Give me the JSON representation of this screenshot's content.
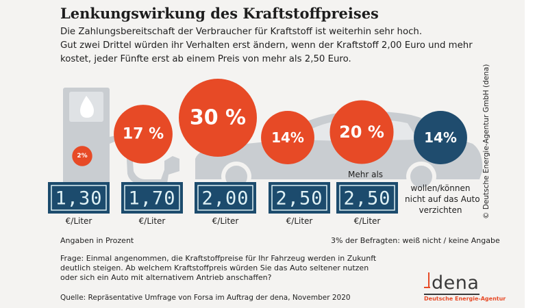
{
  "title": "Lenkungswirkung des Kraftstoffpreises",
  "subtitle": [
    "Die Zahlungsbereitschaft der Verbraucher für Kraftstoff ist weiterhin sehr hoch.",
    "Gut zwei Drittel würden ihr Verhalten erst ändern, wenn der Kraftstoff 2,00 Euro und mehr",
    "kostet, jeder Fünfte erst ab einem Preis von mehr als 2,50 Euro."
  ],
  "colors": {
    "orange": "#e74a26",
    "navy": "#1f4c6e",
    "display_bg": "#1c4b6d",
    "display_text": "#dff1f5",
    "illustration": "#c9cdd1"
  },
  "chart_data": {
    "type": "bubble",
    "unit": "%",
    "categories": [
      "1,30",
      "1,70",
      "2,00",
      "2,50",
      "Mehr als 2,50",
      "wollen/können nicht auf das Auto verzichten"
    ],
    "values": [
      2,
      17,
      30,
      14,
      20,
      14
    ],
    "value_labels": [
      "2%",
      "17 %",
      "30 %",
      "14%",
      "20 %",
      "14%"
    ],
    "series_colors": [
      "#e74a26",
      "#e74a26",
      "#e74a26",
      "#e74a26",
      "#e74a26",
      "#1f4c6e"
    ],
    "price_displays": [
      "1,30",
      "1,70",
      "2,00",
      "2,50",
      "2,50"
    ],
    "price_unit": "€/Liter",
    "prefix_last_price": "Mehr als",
    "no_car_label": [
      "wollen/können",
      "nicht auf das Auto",
      "verzichten"
    ]
  },
  "note_left": "Angaben in Prozent",
  "note_right": "3% der Befragten: weiß nicht / keine Angabe",
  "question": [
    "Frage: Einmal angenommen, die Kraftstoffpreise für Ihr Fahrzeug werden in Zukunft",
    "deutlich steigen. Ab welchem Kraftstoffpreis würden Sie das Auto seltener nutzen",
    "oder sich ein Auto mit alternativem Antrieb anschaffen?"
  ],
  "source": "Quelle: Repräsentative Umfrage von Forsa im Auftrag der dena, November 2020",
  "copyright": "© Deutsche Energie-Agentur GmbH (dena)",
  "logo": {
    "word": "dena",
    "subline": "Deutsche Energie-Agentur"
  }
}
